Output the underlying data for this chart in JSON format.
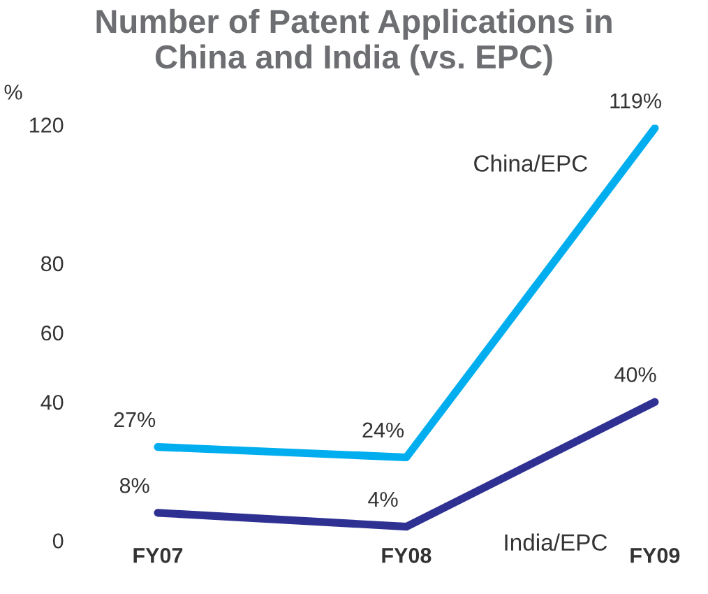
{
  "chart_data": {
    "type": "line",
    "title": "Number of Patent Applications in\nChina and India (vs. EPC)",
    "ylabel": "%",
    "categories": [
      "FY07",
      "FY08",
      "FY09"
    ],
    "series": [
      {
        "name": "China/EPC",
        "color": "#00aeef",
        "values": [
          27,
          24,
          119
        ],
        "value_labels": [
          "27%",
          "24%",
          "119%"
        ]
      },
      {
        "name": "India/EPC",
        "color": "#2e3192",
        "values": [
          8,
          4,
          40
        ],
        "value_labels": [
          "8%",
          "4%",
          "40%"
        ]
      }
    ],
    "ylim": [
      0,
      120
    ],
    "yticks": [
      0,
      40,
      60,
      80,
      120
    ],
    "grid": false,
    "legend": false,
    "marker": "none",
    "line_style": "solid"
  }
}
